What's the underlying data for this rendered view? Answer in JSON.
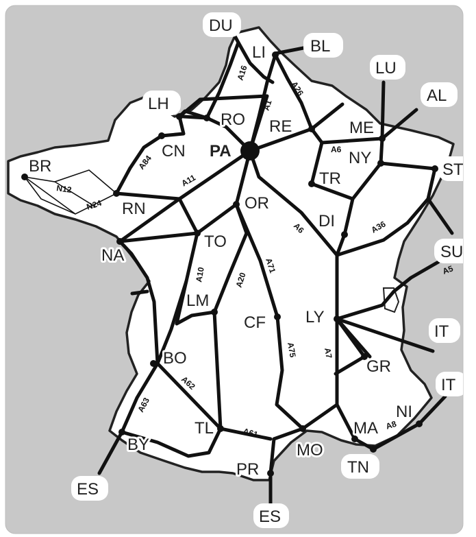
{
  "colors": {
    "sea": "#c8c8c8",
    "land": "#ffffff",
    "border": "#222222",
    "road": "#111111",
    "text": "#222222"
  },
  "capital": {
    "code": "PA"
  },
  "cities": [
    {
      "code": "LI"
    },
    {
      "code": "RO"
    },
    {
      "code": "RE"
    },
    {
      "code": "ME"
    },
    {
      "code": "NY"
    },
    {
      "code": "TR"
    },
    {
      "code": "CN"
    },
    {
      "code": "BR"
    },
    {
      "code": "RN"
    },
    {
      "code": "OR"
    },
    {
      "code": "TO"
    },
    {
      "code": "NA"
    },
    {
      "code": "DI"
    },
    {
      "code": "LM"
    },
    {
      "code": "CF"
    },
    {
      "code": "LY"
    },
    {
      "code": "GR"
    },
    {
      "code": "BO"
    },
    {
      "code": "TL"
    },
    {
      "code": "MO"
    },
    {
      "code": "MA"
    },
    {
      "code": "NI"
    },
    {
      "code": "BY"
    },
    {
      "code": "PR"
    }
  ],
  "exits": [
    {
      "code": "DU"
    },
    {
      "code": "BL"
    },
    {
      "code": "LH"
    },
    {
      "code": "LU"
    },
    {
      "code": "AL"
    },
    {
      "code": "ST"
    },
    {
      "code": "SU"
    },
    {
      "code": "IT"
    },
    {
      "code": "IT"
    },
    {
      "code": "TN"
    },
    {
      "code": "ES"
    },
    {
      "code": "ES"
    }
  ],
  "road_labels": [
    {
      "text": "A16"
    },
    {
      "text": "A1"
    },
    {
      "text": "A26"
    },
    {
      "text": "A6"
    },
    {
      "text": "A84"
    },
    {
      "text": "A11"
    },
    {
      "text": "N12"
    },
    {
      "text": "N24"
    },
    {
      "text": "A10"
    },
    {
      "text": "A20"
    },
    {
      "text": "A71"
    },
    {
      "text": "A6"
    },
    {
      "text": "A36"
    },
    {
      "text": "A5"
    },
    {
      "text": "A7"
    },
    {
      "text": "A75"
    },
    {
      "text": "A62"
    },
    {
      "text": "A63"
    },
    {
      "text": "A61"
    },
    {
      "text": "A8"
    }
  ]
}
